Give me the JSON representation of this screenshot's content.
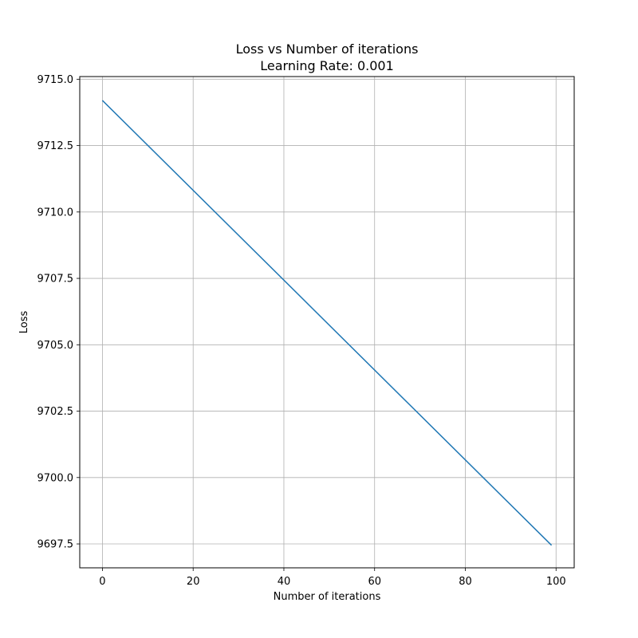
{
  "chart_data": {
    "type": "line",
    "title": "Loss vs Number of iterations",
    "subtitle": "Learning Rate: 0.001",
    "xlabel": "Number of iterations",
    "ylabel": "Loss",
    "xlim": [
      -5,
      104
    ],
    "ylim": [
      9696.6,
      9715.1
    ],
    "xticks": [
      0,
      20,
      40,
      60,
      80,
      100
    ],
    "yticks": [
      9697.5,
      9700.0,
      9702.5,
      9705.0,
      9707.5,
      9710.0,
      9712.5,
      9715.0
    ],
    "grid": true,
    "series": [
      {
        "color": "#1f77b4",
        "x": [
          0,
          99
        ],
        "y": [
          9714.2,
          9697.45
        ]
      }
    ]
  }
}
